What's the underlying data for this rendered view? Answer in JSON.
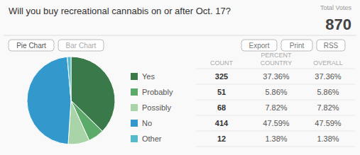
{
  "chart_data": [
    {
      "type": "pie",
      "title": "Will you buy recreational cannabis on or after Oct. 17?",
      "categories": [
        "Yes",
        "Probably",
        "Possibly",
        "No",
        "Other"
      ],
      "values": [
        325,
        51,
        68,
        414,
        12
      ],
      "colors": [
        "#3a7a4a",
        "#5baa6a",
        "#a8d4a8",
        "#3399cc",
        "#55bbcc"
      ],
      "legend": "right",
      "annotations": [
        "Total Votes",
        "870",
        "Pie Chart",
        "Bar Chart",
        "Export",
        "Print",
        "RSS"
      ]
    },
    {
      "type": "table",
      "annotations": [
        "PERCENT"
      ],
      "series": [
        {
          "name": "COUNT",
          "values": [
            325,
            51,
            68,
            414,
            12
          ]
        },
        {
          "name": "COUNTRY",
          "values": [
            37.36,
            5.86,
            7.82,
            47.59,
            1.38
          ],
          "value_labels": [
            "37.36%",
            "5.86%",
            "7.82%",
            "47.59%",
            "1.38%"
          ]
        },
        {
          "name": "OVERALL",
          "values": [
            37.36,
            5.86,
            7.82,
            47.59,
            1.38
          ],
          "value_labels": [
            "37.36%",
            "5.86%",
            "7.82%",
            "47.59%",
            "1.38%"
          ]
        }
      ]
    }
  ]
}
